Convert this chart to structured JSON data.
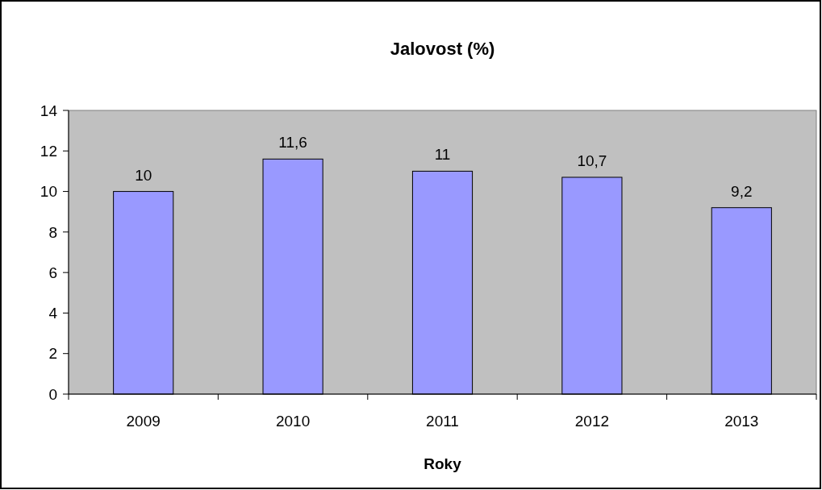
{
  "chart_data": {
    "type": "bar",
    "title": "Jalovost (%)",
    "xlabel": "Roky",
    "categories": [
      "2009",
      "2010",
      "2011",
      "2012",
      "2013"
    ],
    "values": [
      10,
      11.6,
      11,
      10.7,
      9.2
    ],
    "value_labels": [
      "10",
      "11,6",
      "11",
      "10,7",
      "9,2"
    ],
    "color": "#9999ff",
    "ylim": [
      0,
      14
    ],
    "yticks": [
      0,
      2,
      4,
      6,
      8,
      10,
      12,
      14
    ],
    "grid": false
  }
}
